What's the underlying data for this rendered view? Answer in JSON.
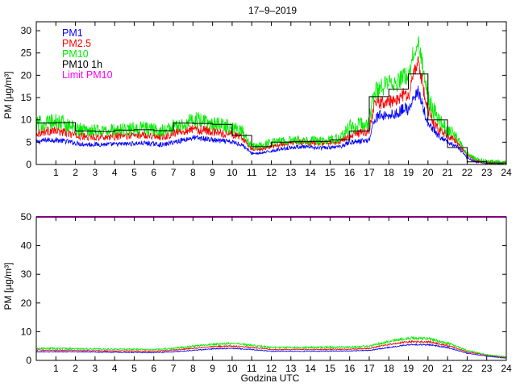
{
  "title": "17–9–2019",
  "chart_data": [
    {
      "type": "line",
      "panel": "top",
      "ylabel": "PM [µg/m³]",
      "xlabel": "",
      "xlim": [
        0,
        24
      ],
      "ylim": [
        0,
        32
      ],
      "xticks": [
        1,
        2,
        3,
        4,
        5,
        6,
        7,
        8,
        9,
        10,
        11,
        12,
        13,
        14,
        15,
        16,
        17,
        18,
        19,
        20,
        21,
        22,
        23,
        24
      ],
      "yticks": [
        0,
        5,
        10,
        15,
        20,
        25,
        30
      ],
      "legend_position": "top-left",
      "legend": [
        {
          "name": "PM1",
          "color": "#0000ff"
        },
        {
          "name": "PM2.5",
          "color": "#ff0000"
        },
        {
          "name": "PM10",
          "color": "#00ee00"
        },
        {
          "name": "PM10 1h",
          "color": "#000000"
        },
        {
          "name": "Limit PM10",
          "color": "#ff00ff"
        }
      ],
      "series": [
        {
          "name": "PM1",
          "color": "#0000ff",
          "x": [
            0,
            0.5,
            1,
            1.5,
            2,
            2.5,
            3,
            3.5,
            4,
            4.5,
            5,
            5.5,
            6,
            6.5,
            7,
            7.5,
            8,
            8.5,
            9,
            9.5,
            10,
            10.5,
            11,
            11.5,
            12,
            12.5,
            13,
            13.5,
            14,
            14.5,
            15,
            15.5,
            16,
            16.5,
            17,
            17.25,
            17.5,
            18,
            18.5,
            18.8,
            19,
            19.2,
            19.5,
            19.8,
            20,
            20.5,
            21,
            21.5,
            22,
            22.5,
            23,
            23.5,
            24
          ],
          "values": [
            5,
            5.5,
            5.5,
            5.2,
            4.8,
            4.5,
            4.5,
            4.5,
            4.5,
            4.6,
            4.7,
            4.8,
            4.6,
            4.4,
            5,
            5.5,
            6,
            5.8,
            5.5,
            5.2,
            5,
            4.5,
            2.5,
            2.5,
            3,
            3.5,
            3.8,
            4,
            3.8,
            3.7,
            3.8,
            4,
            5,
            5.2,
            5.5,
            10,
            11,
            11,
            11.5,
            13,
            12,
            14,
            16.5,
            12,
            9,
            6.5,
            5,
            4,
            1.5,
            0.6,
            0.4,
            0.3,
            0.3
          ]
        },
        {
          "name": "PM2.5",
          "color": "#ff0000",
          "x": [
            0,
            0.5,
            1,
            1.5,
            2,
            2.5,
            3,
            3.5,
            4,
            4.5,
            5,
            5.5,
            6,
            6.5,
            7,
            7.5,
            8,
            8.5,
            9,
            9.5,
            10,
            10.5,
            11,
            11.5,
            12,
            12.5,
            13,
            13.5,
            14,
            14.5,
            15,
            15.5,
            16,
            16.5,
            17,
            17.25,
            17.5,
            18,
            18.5,
            18.8,
            19,
            19.2,
            19.5,
            19.8,
            20,
            20.5,
            21,
            21.5,
            22,
            22.5,
            23,
            23.5,
            24
          ],
          "values": [
            7,
            7.5,
            7.5,
            7.2,
            6.5,
            6.2,
            6.2,
            6.2,
            6.3,
            6.4,
            6.5,
            6.7,
            6.4,
            6.2,
            7,
            7.6,
            8,
            7.8,
            7.4,
            7,
            6.8,
            6,
            3.5,
            3.5,
            4,
            4.5,
            4.8,
            5,
            4.8,
            4.7,
            4.8,
            5,
            6.5,
            7,
            7.5,
            13,
            14,
            14,
            14.5,
            16,
            15,
            19,
            23.5,
            16,
            12,
            8,
            6.5,
            5,
            2,
            0.8,
            0.5,
            0.4,
            0.4
          ]
        },
        {
          "name": "PM10",
          "color": "#00ee00",
          "x": [
            0,
            0.5,
            1,
            1.5,
            2,
            2.5,
            3,
            3.5,
            4,
            4.5,
            5,
            5.5,
            6,
            6.5,
            7,
            7.5,
            8,
            8.5,
            9,
            9.5,
            10,
            10.5,
            11,
            11.5,
            12,
            12.5,
            13,
            13.5,
            14,
            14.5,
            15,
            15.5,
            16,
            16.5,
            17,
            17.25,
            17.5,
            18,
            18.5,
            18.8,
            19,
            19.2,
            19.5,
            19.8,
            20,
            20.5,
            21,
            21.5,
            22,
            22.5,
            23,
            23.5,
            24
          ],
          "values": [
            9,
            9.5,
            9.5,
            9.2,
            8,
            7.8,
            7.8,
            7.6,
            7.7,
            7.8,
            8,
            8.2,
            7.8,
            7.6,
            8.5,
            9.2,
            10,
            9.6,
            9,
            8.8,
            8.5,
            7.5,
            4,
            4.2,
            5,
            5.2,
            5.4,
            5.5,
            5.4,
            5.3,
            5.5,
            6,
            8.5,
            9,
            9.5,
            16,
            17,
            18,
            18.5,
            20,
            19,
            24,
            28,
            20,
            15,
            10,
            8,
            6,
            2.5,
            1,
            0.7,
            0.5,
            0.5
          ]
        },
        {
          "name": "PM10 1h",
          "color": "#000000",
          "step": true,
          "x": [
            0,
            1,
            2,
            3,
            4,
            5,
            6,
            7,
            8,
            9,
            10,
            11,
            12,
            13,
            14,
            15,
            16,
            17,
            18,
            19,
            20,
            21,
            22,
            23
          ],
          "values": [
            9.3,
            9.4,
            7.5,
            7.4,
            7.7,
            7.8,
            7.6,
            9.3,
            9.2,
            9,
            6.5,
            4,
            5,
            5.1,
            5.2,
            5.5,
            7.5,
            15.2,
            16.9,
            20.3,
            10,
            3.8,
            0.6,
            0.3
          ]
        }
      ]
    },
    {
      "type": "line",
      "panel": "bottom",
      "ylabel": "PM [µg/m³]",
      "xlabel": "Godzina UTC",
      "xlim": [
        0,
        24
      ],
      "ylim": [
        0,
        50
      ],
      "xticks": [
        1,
        2,
        3,
        4,
        5,
        6,
        7,
        8,
        9,
        10,
        11,
        12,
        13,
        14,
        15,
        16,
        17,
        18,
        19,
        20,
        21,
        22,
        23,
        24
      ],
      "yticks": [
        0,
        10,
        20,
        30,
        40,
        50
      ],
      "series": [
        {
          "name": "PM1",
          "color": "#0000ff",
          "x": [
            0,
            2,
            4,
            6,
            7,
            8,
            9,
            10,
            11,
            12,
            14,
            16,
            17,
            18,
            19,
            20,
            21,
            22,
            23,
            24
          ],
          "values": [
            3,
            3,
            2.8,
            2.7,
            3,
            3.5,
            4,
            4.2,
            3.8,
            3.2,
            3.2,
            3.3,
            3.5,
            4.5,
            5.5,
            5.5,
            4.5,
            2.5,
            1.5,
            0.8
          ]
        },
        {
          "name": "PM2.5",
          "color": "#ff0000",
          "x": [
            0,
            2,
            4,
            6,
            7,
            8,
            9,
            10,
            11,
            12,
            14,
            16,
            17,
            18,
            19,
            20,
            21,
            22,
            23,
            24
          ],
          "values": [
            3.6,
            3.5,
            3.3,
            3.2,
            3.6,
            4.2,
            4.8,
            5,
            4.5,
            3.8,
            3.8,
            3.9,
            4.2,
            5.5,
            6.5,
            6.5,
            5.2,
            3,
            1.8,
            1
          ]
        },
        {
          "name": "PM10",
          "color": "#00ee00",
          "x": [
            0,
            2,
            4,
            6,
            7,
            8,
            9,
            10,
            11,
            12,
            14,
            16,
            17,
            18,
            19,
            20,
            21,
            22,
            23,
            24
          ],
          "values": [
            4.2,
            4.1,
            3.9,
            3.8,
            4.2,
            4.9,
            5.6,
            5.9,
            5.3,
            4.5,
            4.5,
            4.6,
            5,
            6.5,
            7.8,
            7.6,
            6,
            3.5,
            2,
            1.2
          ]
        },
        {
          "name": "Limit PM10",
          "color": "#ff00ff",
          "x": [
            0,
            24
          ],
          "values": [
            50,
            50
          ]
        }
      ]
    }
  ]
}
